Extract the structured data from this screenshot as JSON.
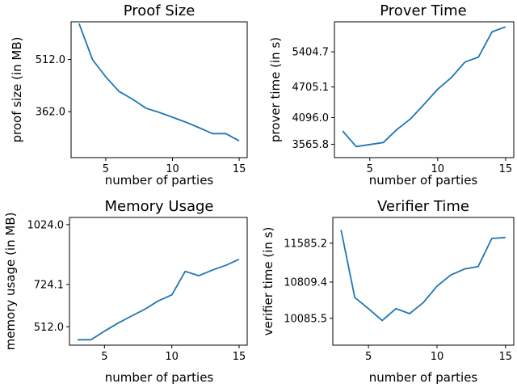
{
  "chart_data": [
    {
      "type": "line",
      "title": "Proof Size",
      "xlabel": "number of parties",
      "ylabel": "proof size (in MB)",
      "xlim": [
        2.4,
        15.6
      ],
      "ylim": [
        230,
        620
      ],
      "xticks": [
        5,
        10,
        15
      ],
      "xtick_labels": [
        "5",
        "10",
        "15"
      ],
      "yticks": [
        362.0,
        512.0
      ],
      "ytick_labels": [
        "362.0",
        "512.0"
      ],
      "grid": false,
      "series": [
        {
          "color": "#1f77b4",
          "x": [
            3,
            4,
            5,
            6,
            7,
            8,
            9,
            10,
            11,
            12,
            13,
            14,
            15
          ],
          "y": [
            615,
            512,
            462,
            420,
            398,
            372,
            360,
            346,
            332,
            316,
            299,
            299,
            278
          ]
        }
      ]
    },
    {
      "type": "line",
      "title": "Prover Time",
      "xlabel": "number of parties",
      "ylabel": "prover time (in s)",
      "xlim": [
        2.4,
        15.6
      ],
      "ylim": [
        3300,
        6000
      ],
      "xticks": [
        5,
        10,
        15
      ],
      "xtick_labels": [
        "5",
        "10",
        "15"
      ],
      "yticks": [
        3565.8,
        4096.0,
        4705.1,
        5404.7
      ],
      "ytick_labels": [
        "3565.8",
        "4096.0",
        "4705.1",
        "5404.7"
      ],
      "grid": false,
      "series": [
        {
          "color": "#1f77b4",
          "x": [
            3,
            4,
            5,
            6,
            7,
            8,
            9,
            10,
            11,
            12,
            13,
            14,
            15
          ],
          "y": [
            3830,
            3520,
            3560,
            3600,
            3860,
            4070,
            4360,
            4660,
            4890,
            5200,
            5300,
            5800,
            5900
          ]
        }
      ]
    },
    {
      "type": "line",
      "title": "Memory Usage",
      "xlabel": "number of parties",
      "ylabel": "memory usage (in MB)",
      "xlim": [
        2.4,
        15.6
      ],
      "ylim": [
        420,
        1060
      ],
      "xticks": [
        5,
        10,
        15
      ],
      "xtick_labels": [
        "5",
        "10",
        "15"
      ],
      "yticks": [
        512.0,
        724.1,
        1024.0
      ],
      "ytick_labels": [
        "512.0",
        "724.1",
        "1024.0"
      ],
      "grid": false,
      "series": [
        {
          "color": "#1f77b4",
          "x": [
            3,
            4,
            5,
            6,
            7,
            8,
            9,
            10,
            11,
            12,
            13,
            14,
            15
          ],
          "y": [
            447,
            447,
            490,
            530,
            566,
            600,
            642,
            672,
            790,
            768,
            796,
            820,
            850
          ]
        }
      ]
    },
    {
      "type": "line",
      "title": "Verifier Time",
      "xlabel": "number of parties",
      "ylabel": "verifier time (in s)",
      "xlim": [
        2.4,
        15.6
      ],
      "ylim": [
        9550,
        12100
      ],
      "xticks": [
        5,
        10,
        15
      ],
      "xtick_labels": [
        "5",
        "10",
        "15"
      ],
      "yticks": [
        10085.5,
        10809.4,
        11585.2
      ],
      "ytick_labels": [
        "10085.5",
        "10809.4",
        "11585.2"
      ],
      "grid": false,
      "series": [
        {
          "color": "#1f77b4",
          "x": [
            3,
            4,
            5,
            6,
            7,
            8,
            9,
            10,
            11,
            12,
            13,
            14,
            15
          ],
          "y": [
            11850,
            10500,
            10280,
            10040,
            10280,
            10180,
            10400,
            10730,
            10950,
            11070,
            11120,
            11680,
            11700
          ]
        }
      ]
    }
  ]
}
